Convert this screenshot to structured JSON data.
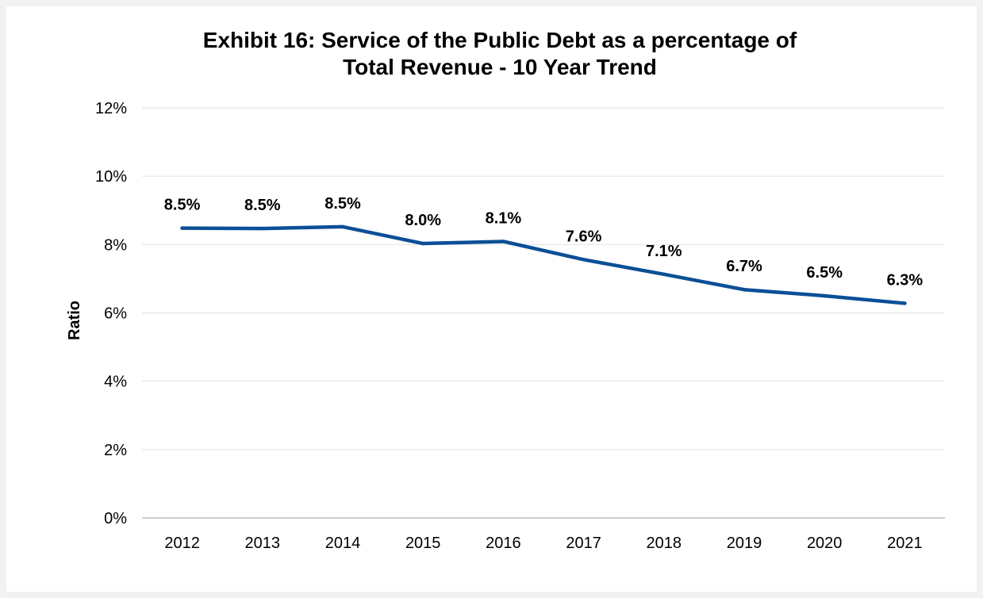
{
  "chart_data": {
    "type": "line",
    "title_lines": [
      "Exhibit 16: Service of the Public Debt as a percentage of",
      "Total Revenue - 10 Year Trend"
    ],
    "xlabel": "",
    "ylabel": "Ratio",
    "categories": [
      "2012",
      "2013",
      "2014",
      "2015",
      "2016",
      "2017",
      "2018",
      "2019",
      "2020",
      "2021"
    ],
    "series": [
      {
        "values": [
          8.48,
          8.47,
          8.52,
          8.03,
          8.09,
          7.56,
          7.13,
          6.68,
          6.5,
          6.28
        ],
        "labels": [
          "8.5%",
          "8.5%",
          "8.5%",
          "8.0%",
          "8.1%",
          "7.6%",
          "7.1%",
          "6.7%",
          "6.5%",
          "6.3%"
        ],
        "color": "#0b4f96"
      }
    ],
    "ylim": [
      0,
      12
    ],
    "yticks": [
      0,
      2,
      4,
      6,
      8,
      10,
      12
    ],
    "ytick_labels": [
      "0%",
      "2%",
      "4%",
      "6%",
      "8%",
      "10%",
      "12%"
    ],
    "grid": true,
    "legend": "none"
  }
}
